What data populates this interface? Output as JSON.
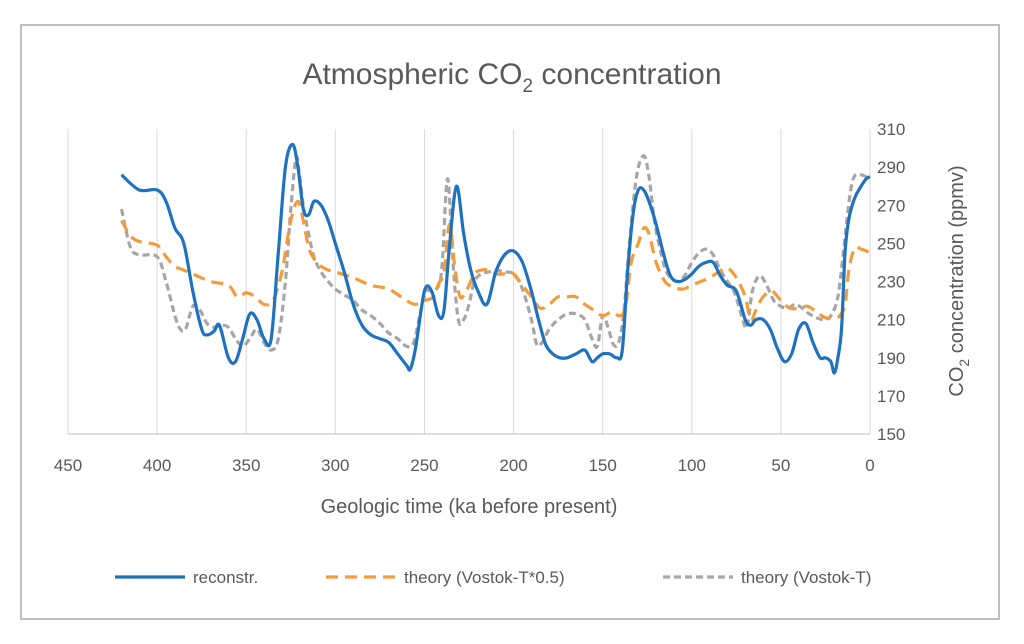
{
  "chart_data": {
    "type": "line",
    "title": "Atmospheric CO₂ concentration",
    "xlabel": "Geologic time (ka before present)",
    "ylabel": "CO₂ concentration (ppmv)",
    "xlim": [
      450,
      0
    ],
    "ylim": [
      150,
      310
    ],
    "x_ticks": [
      450,
      400,
      350,
      300,
      250,
      200,
      150,
      100,
      50,
      0
    ],
    "y_ticks": [
      150,
      170,
      190,
      210,
      230,
      250,
      270,
      290,
      310
    ],
    "y_axis_side": "right",
    "grid": "vertical",
    "legend_position": "bottom",
    "colors": {
      "reconstr": "#1f72bf",
      "theory_half": "#f59b3b",
      "theory_full": "#a6a6a6"
    },
    "series": [
      {
        "name": "reconstr.",
        "style": "solid",
        "x": [
          420,
          410,
          400,
          395,
          390,
          385,
          380,
          375,
          372,
          368,
          365,
          360,
          356,
          352,
          348,
          344,
          340,
          336,
          332,
          328,
          324,
          321,
          318,
          315,
          312,
          308,
          304,
          300,
          295,
          290,
          285,
          280,
          275,
          270,
          265,
          260,
          258,
          255,
          250,
          246,
          242,
          239,
          236,
          232,
          228,
          224,
          220,
          215,
          210,
          205,
          200,
          195,
          190,
          186,
          182,
          178,
          174,
          170,
          165,
          160,
          156,
          153,
          150,
          146,
          142,
          139,
          136,
          133,
          130,
          127,
          124,
          120,
          116,
          112,
          108,
          104,
          100,
          96,
          92,
          88,
          84,
          80,
          75,
          70,
          67,
          64,
          60,
          56,
          52,
          48,
          44,
          40,
          36,
          32,
          28,
          25,
          22,
          20,
          18,
          16,
          14,
          12,
          10,
          8,
          5,
          2,
          0
        ],
        "y": [
          286,
          278,
          278,
          272,
          258,
          250,
          225,
          205,
          202,
          204,
          207,
          190,
          188,
          200,
          213,
          210,
          200,
          200,
          245,
          290,
          302,
          290,
          268,
          265,
          272,
          270,
          262,
          250,
          235,
          218,
          207,
          202,
          200,
          198,
          192,
          186,
          184,
          195,
          225,
          225,
          212,
          215,
          248,
          280,
          255,
          236,
          225,
          218,
          235,
          244,
          246,
          240,
          225,
          210,
          197,
          192,
          190,
          190,
          192,
          194,
          188,
          190,
          192,
          192,
          190,
          194,
          235,
          265,
          278,
          278,
          272,
          260,
          245,
          233,
          230,
          231,
          234,
          238,
          240,
          240,
          233,
          228,
          225,
          210,
          207,
          210,
          210,
          205,
          195,
          188,
          192,
          205,
          208,
          198,
          190,
          190,
          188,
          182,
          190,
          205,
          245,
          262,
          270,
          275,
          280,
          284,
          285
        ]
      },
      {
        "name": "theory (Vostok-T*0.5)",
        "style": "dashed",
        "x": [
          420,
          415,
          410,
          400,
          395,
          390,
          385,
          380,
          370,
          360,
          355,
          350,
          345,
          340,
          335,
          330,
          325,
          321,
          318,
          315,
          312,
          308,
          304,
          300,
          290,
          280,
          270,
          260,
          255,
          250,
          245,
          242,
          239,
          236,
          233,
          230,
          226,
          222,
          218,
          214,
          210,
          205,
          200,
          195,
          190,
          185,
          180,
          175,
          170,
          165,
          160,
          155,
          150,
          145,
          140,
          137,
          134,
          130,
          127,
          124,
          120,
          115,
          110,
          105,
          100,
          95,
          90,
          85,
          80,
          75,
          70,
          67,
          64,
          60,
          55,
          50,
          45,
          40,
          35,
          30,
          25,
          20,
          17,
          14,
          12,
          10,
          8,
          5,
          2,
          0
        ],
        "y": [
          262,
          254,
          251,
          249,
          243,
          238,
          236,
          234,
          230,
          228,
          222,
          224,
          222,
          218,
          220,
          235,
          262,
          272,
          262,
          248,
          242,
          238,
          236,
          235,
          232,
          228,
          226,
          220,
          218,
          220,
          222,
          229,
          235,
          260,
          238,
          222,
          226,
          234,
          236,
          236,
          234,
          234,
          234,
          228,
          222,
          216,
          218,
          222,
          222,
          222,
          218,
          215,
          212,
          214,
          212,
          218,
          240,
          250,
          258,
          255,
          240,
          230,
          227,
          226,
          228,
          230,
          232,
          235,
          237,
          232,
          222,
          210,
          215,
          222,
          225,
          220,
          216,
          216,
          217,
          214,
          211,
          211,
          212,
          218,
          235,
          244,
          248,
          247,
          246,
          245
        ]
      },
      {
        "name": "theory (Vostok-T)",
        "style": "dashed",
        "x": [
          420,
          415,
          410,
          400,
          395,
          390,
          387,
          384,
          380,
          376,
          372,
          368,
          364,
          360,
          356,
          352,
          348,
          344,
          340,
          336,
          332,
          328,
          325,
          322,
          320,
          318,
          315,
          312,
          308,
          304,
          300,
          295,
          290,
          285,
          280,
          275,
          270,
          265,
          260,
          256,
          252,
          249,
          246,
          242,
          240,
          237,
          234,
          231,
          228,
          225,
          222,
          218,
          214,
          210,
          205,
          200,
          195,
          190,
          187,
          184,
          180,
          175,
          170,
          165,
          160,
          156,
          153,
          150,
          147,
          144,
          141,
          138,
          135,
          131,
          127,
          124,
          121,
          118,
          115,
          112,
          108,
          104,
          100,
          96,
          92,
          88,
          84,
          80,
          76,
          72,
          69,
          66,
          62,
          58,
          54,
          50,
          46,
          42,
          38,
          34,
          30,
          26,
          22,
          18,
          15,
          12,
          10,
          8,
          5,
          2,
          0
        ],
        "y": [
          268,
          248,
          244,
          243,
          230,
          212,
          205,
          205,
          217,
          215,
          208,
          206,
          207,
          206,
          200,
          196,
          200,
          205,
          198,
          194,
          200,
          230,
          268,
          295,
          285,
          270,
          255,
          243,
          235,
          230,
          226,
          223,
          220,
          215,
          212,
          208,
          203,
          200,
          196,
          198,
          215,
          225,
          225,
          228,
          240,
          284,
          240,
          210,
          210,
          218,
          230,
          234,
          235,
          236,
          235,
          234,
          226,
          210,
          197,
          198,
          205,
          210,
          213,
          213,
          210,
          200,
          196,
          212,
          206,
          197,
          198,
          215,
          250,
          285,
          296,
          285,
          262,
          248,
          237,
          232,
          230,
          233,
          240,
          245,
          247,
          244,
          236,
          230,
          224,
          212,
          206,
          225,
          233,
          228,
          220,
          217,
          216,
          218,
          216,
          213,
          211,
          210,
          212,
          222,
          245,
          270,
          282,
          286,
          286,
          285,
          285
        ]
      }
    ]
  }
}
